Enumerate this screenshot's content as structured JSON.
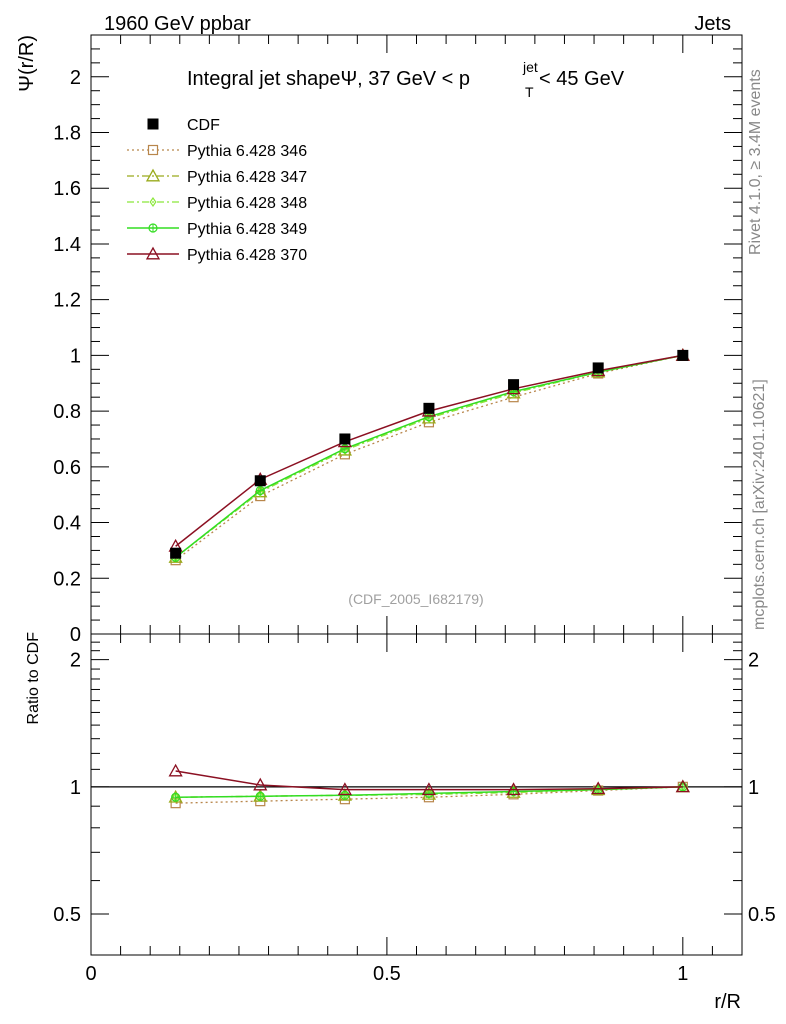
{
  "header": {
    "left": "1960 GeV ppbar",
    "right": "Jets"
  },
  "side_labels": {
    "rivet": "Rivet 4.1.0, ≥ 3.4M events",
    "mcplots": "mcplots.cern.ch [arXiv:2401.10621]"
  },
  "chart_data": [
    {
      "type": "line",
      "title": "Integral jet shapeΨ, 37 GeV < p",
      "title_sup": "jet",
      "title_sub": "T",
      "title_tail": " < 45 GeV",
      "ylabel": "Ψ(r/R)",
      "xlabel": "r/R",
      "watermark": "(CDF_2005_I682179)",
      "xlim": [
        0,
        1.1
      ],
      "ylim": [
        0,
        2.15
      ],
      "yticks": [
        0,
        0.2,
        0.4,
        0.6,
        0.8,
        1,
        1.2,
        1.4,
        1.6,
        1.8,
        2
      ],
      "ytick_labels": [
        "0",
        "0.2",
        "0.4",
        "0.6",
        "0.8",
        "1",
        "1.2",
        "1.4",
        "1.6",
        "1.8",
        "2"
      ],
      "legend_position": "top-left",
      "x": [
        0.143,
        0.286,
        0.429,
        0.571,
        0.714,
        0.857,
        1.0
      ],
      "series": [
        {
          "name": "CDF",
          "color": "#000000",
          "marker": "filled-square",
          "line": "none",
          "values": [
            0.29,
            0.55,
            0.7,
            0.81,
            0.895,
            0.955,
            1.0
          ]
        },
        {
          "name": "Pythia 6.428 346",
          "color": "#b8864b",
          "marker": "open-square",
          "line": "dotted",
          "values": [
            0.265,
            0.495,
            0.645,
            0.76,
            0.85,
            0.935,
            1.0
          ]
        },
        {
          "name": "Pythia 6.428 347",
          "color": "#9aab1c",
          "marker": "open-triangle",
          "line": "dashdot",
          "values": [
            0.275,
            0.51,
            0.66,
            0.775,
            0.865,
            0.94,
            1.0
          ]
        },
        {
          "name": "Pythia 6.428 348",
          "color": "#8be83a",
          "marker": "open-diamond",
          "line": "dashdot",
          "values": [
            0.275,
            0.51,
            0.66,
            0.775,
            0.865,
            0.94,
            1.0
          ]
        },
        {
          "name": "Pythia 6.428 349",
          "color": "#33dd22",
          "marker": "open-circle-cross",
          "line": "solid",
          "values": [
            0.275,
            0.515,
            0.665,
            0.78,
            0.87,
            0.94,
            1.0
          ]
        },
        {
          "name": "Pythia 6.428 370",
          "color": "#8b1022",
          "marker": "open-triangle",
          "line": "solid",
          "values": [
            0.315,
            0.555,
            0.69,
            0.8,
            0.88,
            0.945,
            1.0
          ]
        }
      ]
    },
    {
      "type": "line",
      "ylabel": "Ratio to CDF",
      "xlabel": "r/R",
      "xlim": [
        0,
        1.1
      ],
      "ylim": [
        0.4,
        2.3
      ],
      "yscale": "log",
      "yticks": [
        0.5,
        1,
        2
      ],
      "ytick_labels": [
        "0.5",
        "1",
        "2"
      ],
      "xticks": [
        0,
        0.5,
        1
      ],
      "xtick_labels": [
        "0",
        "0.5",
        "1"
      ],
      "x": [
        0.143,
        0.286,
        0.429,
        0.571,
        0.714,
        0.857,
        1.0
      ],
      "series": [
        {
          "name": "Pythia 6.428 346",
          "color": "#b8864b",
          "marker": "open-square",
          "line": "dotted",
          "values": [
            0.915,
            0.925,
            0.935,
            0.945,
            0.96,
            0.98,
            1.0
          ]
        },
        {
          "name": "Pythia 6.428 347",
          "color": "#9aab1c",
          "marker": "open-triangle",
          "line": "dashdot",
          "values": [
            0.945,
            0.95,
            0.955,
            0.96,
            0.97,
            0.985,
            1.0
          ]
        },
        {
          "name": "Pythia 6.428 348",
          "color": "#8be83a",
          "marker": "open-diamond",
          "line": "dashdot",
          "values": [
            0.945,
            0.95,
            0.955,
            0.96,
            0.97,
            0.985,
            1.0
          ]
        },
        {
          "name": "Pythia 6.428 349",
          "color": "#33dd22",
          "marker": "open-circle-cross",
          "line": "solid",
          "values": [
            0.945,
            0.95,
            0.955,
            0.965,
            0.975,
            0.985,
            1.0
          ]
        },
        {
          "name": "Pythia 6.428 370",
          "color": "#8b1022",
          "marker": "open-triangle",
          "line": "solid",
          "values": [
            1.09,
            1.01,
            0.985,
            0.985,
            0.985,
            0.99,
            1.0
          ]
        }
      ]
    }
  ]
}
